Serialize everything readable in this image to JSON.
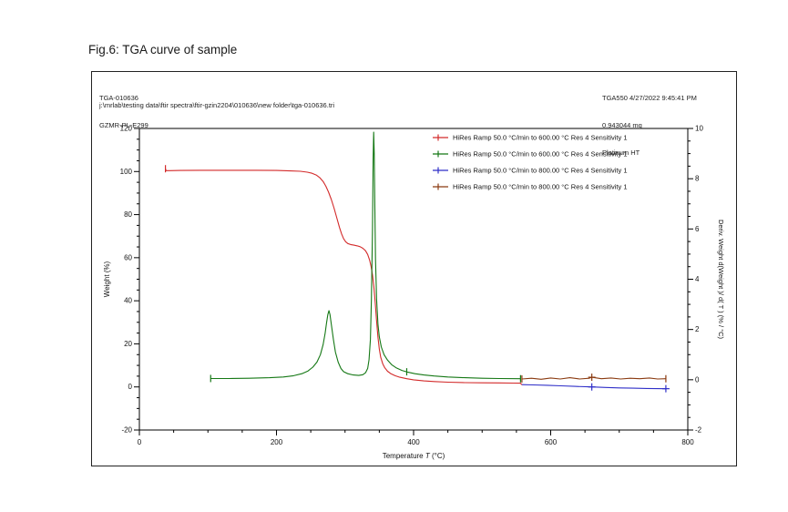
{
  "figure": {
    "caption": "Fig.6: TGA curve of sample"
  },
  "report": {
    "sample_id": "TGA-010636",
    "sample_name": "GZMR-PL-E299",
    "instrument_datetime": "TGA550 4/27/2022 9:45:41 PM",
    "sample_mass": "0.943044 mg",
    "pan_type": "Platinum HT",
    "file_path": "j:\\mrlab\\testing data\\ftir spectra\\ftir-gzin2204\\010636\\new folder\\tga-010636.tri"
  },
  "chart_data": {
    "type": "line",
    "title": "",
    "xlabel": {
      "prefix": "Temperature ",
      "symbol": "T",
      "suffix": " (°C)"
    },
    "ylabel_left": "Weight (%)",
    "ylabel_right": "Deriv. Weight d(Weight )/ d( T ) (% / °C)",
    "xlim": [
      0,
      800
    ],
    "ylim_left": [
      -20,
      120
    ],
    "ylim_right": [
      -2,
      10
    ],
    "x_major": [
      0,
      200,
      400,
      600,
      800
    ],
    "x_minor_step": 50,
    "yl_major": [
      -20,
      0,
      20,
      40,
      60,
      80,
      100,
      120
    ],
    "yl_minor_step": 5,
    "yr_major": [
      -2,
      0,
      2,
      4,
      6,
      8,
      10
    ],
    "yr_minor_step": 0.5,
    "grid": false,
    "legend_position": "top-right",
    "series": [
      {
        "name": "HiRes Ramp 50.0 °C/min to 600.00 °C Res 4 Sensitivity 1",
        "color": "#d32a2a",
        "axis": "left",
        "bars": [
          38
        ],
        "crosses": [],
        "points": [
          [
            38,
            101.3
          ],
          [
            39,
            100.4
          ],
          [
            45,
            100.4
          ],
          [
            60,
            100.5
          ],
          [
            90,
            100.6
          ],
          [
            130,
            100.6
          ],
          [
            170,
            100.6
          ],
          [
            200,
            100.5
          ],
          [
            220,
            100.3
          ],
          [
            235,
            100.1
          ],
          [
            245,
            99.7
          ],
          [
            252,
            99.2
          ],
          [
            258,
            98.4
          ],
          [
            263,
            97.2
          ],
          [
            268,
            95.4
          ],
          [
            272,
            93.2
          ],
          [
            276,
            90.4
          ],
          [
            280,
            87
          ],
          [
            284,
            83
          ],
          [
            288,
            78.5
          ],
          [
            292,
            74
          ],
          [
            295,
            71
          ],
          [
            298,
            68.8
          ],
          [
            301,
            67.4
          ],
          [
            304,
            66.6
          ],
          [
            308,
            66.1
          ],
          [
            313,
            65.8
          ],
          [
            318,
            65.5
          ],
          [
            322,
            65.1
          ],
          [
            326,
            64.4
          ],
          [
            330,
            63.2
          ],
          [
            333,
            61.5
          ],
          [
            336,
            58.8
          ],
          [
            338,
            56
          ],
          [
            340,
            52
          ],
          [
            342,
            46.5
          ],
          [
            344,
            39
          ],
          [
            346,
            30.5
          ],
          [
            348,
            23
          ],
          [
            350,
            17.5
          ],
          [
            352,
            13.8
          ],
          [
            355,
            10.8
          ],
          [
            358,
            8.9
          ],
          [
            362,
            7.3
          ],
          [
            367,
            6.1
          ],
          [
            373,
            5.2
          ],
          [
            380,
            4.5
          ],
          [
            390,
            3.8
          ],
          [
            400,
            3.3
          ],
          [
            415,
            2.8
          ],
          [
            430,
            2.5
          ],
          [
            450,
            2.2
          ],
          [
            475,
            2.0
          ],
          [
            500,
            1.9
          ],
          [
            525,
            1.85
          ],
          [
            545,
            1.8
          ],
          [
            556,
            1.75
          ],
          [
            558,
            1.0
          ]
        ]
      },
      {
        "name": "HiRes Ramp 50.0 °C/min to 600.00 °C Res 4 Sensitivity 1",
        "color": "#157815",
        "axis": "right",
        "bars": [
          104,
          390,
          556
        ],
        "crosses": [],
        "points": [
          [
            104,
            0.05
          ],
          [
            130,
            0.05
          ],
          [
            160,
            0.06
          ],
          [
            190,
            0.08
          ],
          [
            210,
            0.11
          ],
          [
            225,
            0.16
          ],
          [
            237,
            0.24
          ],
          [
            246,
            0.35
          ],
          [
            253,
            0.5
          ],
          [
            259,
            0.7
          ],
          [
            264,
            1.0
          ],
          [
            268,
            1.4
          ],
          [
            271,
            1.85
          ],
          [
            273,
            2.25
          ],
          [
            275,
            2.6
          ],
          [
            276.5,
            2.75
          ],
          [
            278,
            2.6
          ],
          [
            280,
            2.2
          ],
          [
            283,
            1.6
          ],
          [
            286,
            1.1
          ],
          [
            290,
            0.7
          ],
          [
            294,
            0.45
          ],
          [
            298,
            0.32
          ],
          [
            304,
            0.24
          ],
          [
            312,
            0.19
          ],
          [
            320,
            0.17
          ],
          [
            326,
            0.2
          ],
          [
            330,
            0.28
          ],
          [
            333,
            0.45
          ],
          [
            335,
            0.8
          ],
          [
            337,
            1.6
          ],
          [
            338.5,
            3.2
          ],
          [
            340,
            6.0
          ],
          [
            341,
            8.8
          ],
          [
            341.8,
            9.85
          ],
          [
            342.6,
            9.0
          ],
          [
            343.5,
            6.8
          ],
          [
            344.5,
            4.8
          ],
          [
            346,
            3.2
          ],
          [
            348,
            2.2
          ],
          [
            350,
            1.7
          ],
          [
            353,
            1.3
          ],
          [
            357,
            1.0
          ],
          [
            362,
            0.78
          ],
          [
            368,
            0.6
          ],
          [
            375,
            0.47
          ],
          [
            383,
            0.37
          ],
          [
            392,
            0.3
          ],
          [
            402,
            0.24
          ],
          [
            415,
            0.19
          ],
          [
            430,
            0.15
          ],
          [
            450,
            0.11
          ],
          [
            475,
            0.08
          ],
          [
            500,
            0.06
          ],
          [
            525,
            0.05
          ],
          [
            556,
            0.04
          ]
        ]
      },
      {
        "name": "HiRes Ramp 50.0 °C/min to 800.00 °C Res 4 Sensitivity 1",
        "color": "#2f2fc8",
        "axis": "left",
        "bars": [],
        "crosses": [
          660,
          768
        ],
        "points": [
          [
            558,
            1.05
          ],
          [
            575,
            0.95
          ],
          [
            595,
            0.75
          ],
          [
            615,
            0.5
          ],
          [
            635,
            0.25
          ],
          [
            655,
            0.05
          ],
          [
            660,
            0.0
          ],
          [
            680,
            -0.25
          ],
          [
            700,
            -0.45
          ],
          [
            720,
            -0.6
          ],
          [
            740,
            -0.72
          ],
          [
            755,
            -0.8
          ],
          [
            768,
            -0.82
          ]
        ]
      },
      {
        "name": "HiRes Ramp 50.0 °C/min to 800.00 °C Res 4 Sensitivity 1",
        "color": "#8a3a10",
        "axis": "right",
        "bars": [
          558,
          768
        ],
        "crosses": [
          660
        ],
        "points": [
          [
            558,
            0.03
          ],
          [
            572,
            0.06
          ],
          [
            586,
            0.02
          ],
          [
            600,
            0.07
          ],
          [
            614,
            0.03
          ],
          [
            628,
            0.08
          ],
          [
            642,
            0.03
          ],
          [
            656,
            0.06
          ],
          [
            660,
            0.1
          ],
          [
            674,
            0.04
          ],
          [
            688,
            0.07
          ],
          [
            702,
            0.03
          ],
          [
            716,
            0.06
          ],
          [
            730,
            0.04
          ],
          [
            744,
            0.07
          ],
          [
            756,
            0.03
          ],
          [
            768,
            0.04
          ]
        ]
      }
    ]
  }
}
